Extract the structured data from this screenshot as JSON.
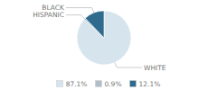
{
  "chart_data": {
    "type": "pie",
    "categories": [
      "WHITE",
      "HISPANIC",
      "BLACK"
    ],
    "values": [
      87.1,
      0.9,
      12.1
    ],
    "value_labels": [
      "87.1%",
      "0.9%",
      "12.1%"
    ],
    "colors": [
      "#d6e4ed",
      "#b0bec8",
      "#2e6b8c"
    ],
    "legend": "bottom"
  }
}
